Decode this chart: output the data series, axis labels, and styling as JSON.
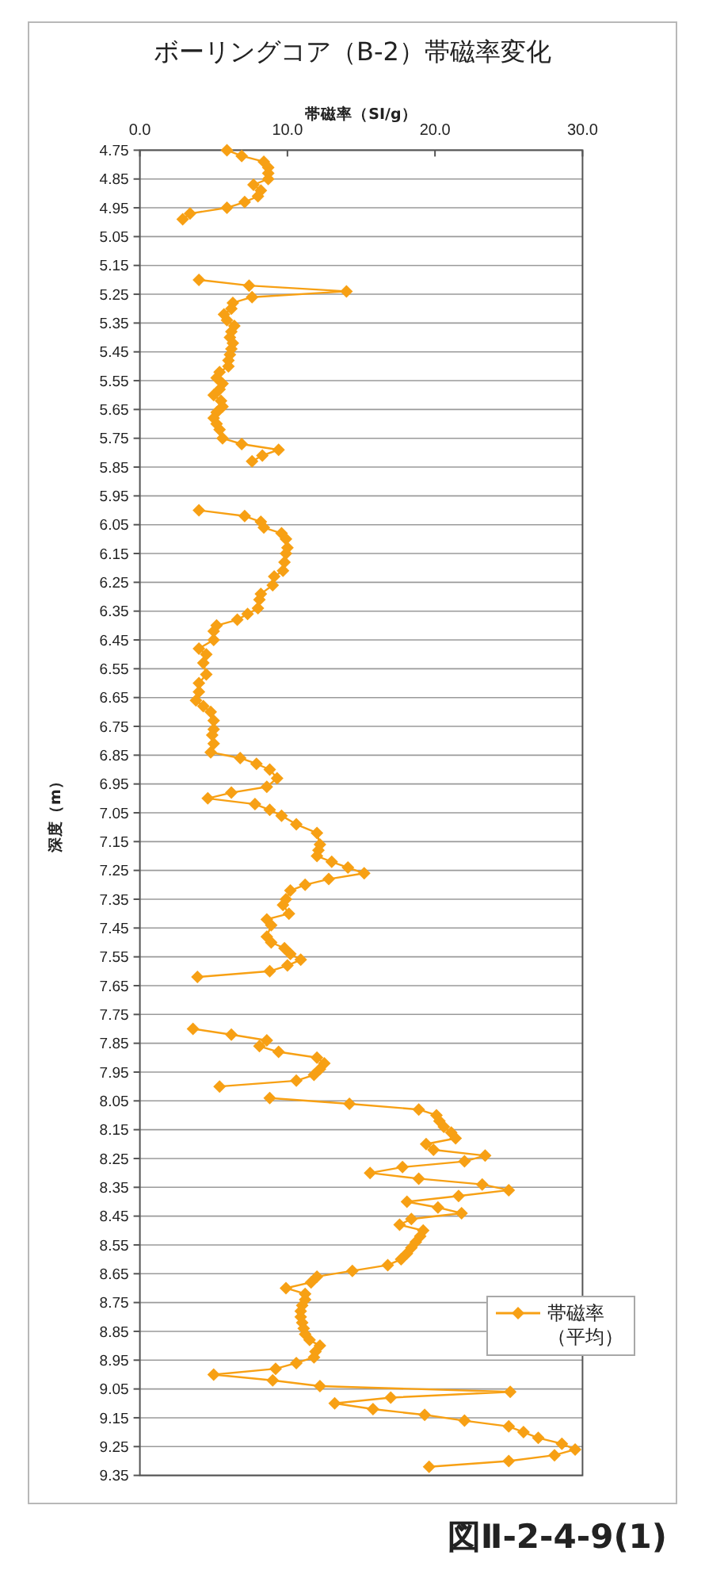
{
  "chart_data": {
    "type": "line",
    "title": "ボーリングコア（B-2）帯磁率変化",
    "xlabel": "帯磁率（SI/g）",
    "ylabel": "深度（m）",
    "series": [
      {
        "name": "帯磁率（平均）",
        "color": "#f7a014",
        "x": [
          5.9,
          6.9,
          8.4,
          8.7,
          8.7,
          8.7,
          7.7,
          8.2,
          8.0,
          7.1,
          5.9,
          3.4,
          2.9,
          null,
          4.0,
          7.4,
          14.0,
          7.6,
          6.3,
          6.2,
          5.7,
          5.9,
          6.4,
          6.2,
          6.1,
          6.3,
          6.2,
          6.1,
          6.0,
          6.0,
          5.4,
          5.2,
          5.6,
          5.4,
          5.0,
          5.5,
          5.6,
          5.2,
          5.0,
          5.2,
          5.4,
          5.6,
          6.9,
          9.4,
          8.3,
          7.6,
          null,
          4.0,
          7.1,
          8.2,
          8.4,
          9.6,
          9.9,
          10.0,
          9.9,
          9.8,
          9.7,
          9.1,
          9.0,
          8.2,
          8.1,
          8.0,
          7.3,
          6.6,
          5.2,
          5.0,
          5.0,
          4.0,
          4.5,
          4.3,
          4.5,
          4.0,
          4.0,
          3.8,
          4.3,
          4.8,
          5.0,
          5.0,
          4.9,
          5.0,
          4.8,
          6.8,
          7.9,
          8.8,
          9.3,
          8.6,
          6.2,
          4.6,
          7.8,
          8.8,
          9.6,
          10.6,
          12.0,
          12.2,
          12.1,
          12.0,
          13.0,
          14.1,
          15.2,
          12.8,
          11.2,
          10.2,
          9.9,
          9.7,
          10.1,
          8.6,
          8.9,
          8.6,
          8.9,
          9.8,
          10.2,
          10.9,
          10.0,
          8.8,
          3.9,
          null,
          3.6,
          6.2,
          8.6,
          8.1,
          9.4,
          12.0,
          12.5,
          12.2,
          11.8,
          10.6,
          5.4,
          null,
          8.8,
          14.2,
          18.9,
          20.1,
          20.3,
          20.6,
          21.1,
          21.4,
          19.4,
          19.9,
          23.4,
          22.0,
          17.8,
          15.6,
          18.9,
          23.2,
          25.0,
          21.6,
          18.1,
          20.2,
          21.8,
          18.4,
          17.6,
          19.2,
          19.0,
          18.7,
          18.4,
          18.1,
          17.7,
          16.8,
          14.4,
          12.0,
          11.6,
          9.9,
          11.2,
          11.2,
          11.0,
          10.9,
          10.9,
          11.0,
          11.1,
          11.2,
          11.5,
          12.2,
          11.9,
          11.8,
          10.6,
          9.2,
          5.0,
          9.0,
          12.2,
          25.1,
          17.0,
          13.2,
          15.8,
          19.3,
          22.0,
          25.0,
          26.0,
          27.0,
          28.6,
          29.5,
          28.1,
          25.0,
          19.6
        ],
        "values": [
          4.75,
          4.77,
          4.79,
          4.81,
          4.83,
          4.85,
          4.87,
          4.89,
          4.91,
          4.93,
          4.95,
          4.97,
          4.99,
          null,
          5.2,
          5.22,
          5.24,
          5.26,
          5.28,
          5.3,
          5.32,
          5.34,
          5.36,
          5.38,
          5.4,
          5.42,
          5.44,
          5.46,
          5.48,
          5.5,
          5.52,
          5.54,
          5.56,
          5.58,
          5.6,
          5.62,
          5.64,
          5.66,
          5.68,
          5.7,
          5.72,
          5.75,
          5.77,
          5.79,
          5.81,
          5.83,
          null,
          6.0,
          6.02,
          6.04,
          6.06,
          6.08,
          6.1,
          6.13,
          6.15,
          6.18,
          6.21,
          6.23,
          6.26,
          6.29,
          6.31,
          6.34,
          6.36,
          6.38,
          6.4,
          6.42,
          6.45,
          6.48,
          6.5,
          6.53,
          6.57,
          6.6,
          6.63,
          6.66,
          6.68,
          6.7,
          6.73,
          6.76,
          6.78,
          6.81,
          6.84,
          6.86,
          6.88,
          6.9,
          6.93,
          6.96,
          6.98,
          7.0,
          7.02,
          7.04,
          7.06,
          7.09,
          7.12,
          7.16,
          7.18,
          7.2,
          7.22,
          7.24,
          7.26,
          7.28,
          7.3,
          7.32,
          7.35,
          7.37,
          7.4,
          7.42,
          7.44,
          7.48,
          7.5,
          7.52,
          7.54,
          7.56,
          7.58,
          7.6,
          7.62,
          null,
          7.8,
          7.82,
          7.84,
          7.86,
          7.88,
          7.9,
          7.92,
          7.94,
          7.96,
          7.98,
          8.0,
          null,
          8.04,
          8.06,
          8.08,
          8.1,
          8.12,
          8.14,
          8.16,
          8.18,
          8.2,
          8.22,
          8.24,
          8.26,
          8.28,
          8.3,
          8.32,
          8.34,
          8.36,
          8.38,
          8.4,
          8.42,
          8.44,
          8.46,
          8.48,
          8.5,
          8.52,
          8.54,
          8.56,
          8.58,
          8.6,
          8.62,
          8.64,
          8.66,
          8.68,
          8.7,
          8.72,
          8.74,
          8.76,
          8.78,
          8.8,
          8.82,
          8.84,
          8.86,
          8.88,
          8.9,
          8.92,
          8.94,
          8.96,
          8.98,
          9.0,
          9.02,
          9.04,
          9.06,
          9.08,
          9.1,
          9.12,
          9.14,
          9.16,
          9.18,
          9.2,
          9.22,
          9.24,
          9.26,
          9.28,
          9.3,
          9.32
        ]
      }
    ],
    "xlim": [
      0,
      30
    ],
    "xticks": [
      {
        "value": 0,
        "label": "0.0"
      },
      {
        "value": 10,
        "label": "10.0"
      },
      {
        "value": 20,
        "label": "20.0"
      },
      {
        "value": 30,
        "label": "30.0"
      }
    ],
    "ylim": [
      9.35,
      4.75
    ],
    "yticks": [
      4.75,
      4.85,
      4.95,
      5.05,
      5.15,
      5.25,
      5.35,
      5.45,
      5.55,
      5.65,
      5.75,
      5.85,
      5.95,
      6.05,
      6.15,
      6.25,
      6.35,
      6.45,
      6.55,
      6.65,
      6.75,
      6.85,
      6.95,
      7.05,
      7.15,
      7.25,
      7.35,
      7.45,
      7.55,
      7.65,
      7.75,
      7.85,
      7.95,
      8.05,
      8.15,
      8.25,
      8.35,
      8.45,
      8.55,
      8.65,
      8.75,
      8.85,
      8.95,
      9.05,
      9.15,
      9.25,
      9.35
    ],
    "grid": "y",
    "legend": "right",
    "marker": "diamond",
    "line_style": "solid",
    "annotations": [
      "図Ⅱ-2-4-9(1)"
    ]
  }
}
